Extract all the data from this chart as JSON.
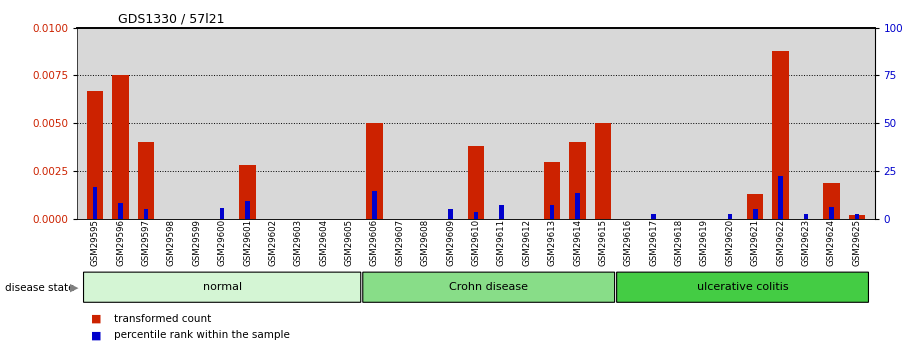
{
  "title": "GDS1330 / 57l21",
  "categories": [
    "GSM29595",
    "GSM29596",
    "GSM29597",
    "GSM29598",
    "GSM29599",
    "GSM29600",
    "GSM29601",
    "GSM29602",
    "GSM29603",
    "GSM29604",
    "GSM29605",
    "GSM29606",
    "GSM29607",
    "GSM29608",
    "GSM29609",
    "GSM29610",
    "GSM29611",
    "GSM29612",
    "GSM29613",
    "GSM29614",
    "GSM29615",
    "GSM29616",
    "GSM29617",
    "GSM29618",
    "GSM29619",
    "GSM29620",
    "GSM29621",
    "GSM29622",
    "GSM29623",
    "GSM29624",
    "GSM29625"
  ],
  "red_values": [
    0.0067,
    0.0075,
    0.004,
    0.0,
    0.0,
    0.0,
    0.0028,
    0.0,
    0.0,
    0.0,
    0.0,
    0.005,
    0.0,
    0.0,
    0.0,
    0.0038,
    0.0,
    0.0,
    0.003,
    0.004,
    0.005,
    0.0,
    0.0,
    0.0,
    0.0,
    0.0,
    0.0013,
    0.0088,
    0.0,
    0.0019,
    0.0002
  ],
  "blue_values": [
    0.00165,
    0.00085,
    0.00055,
    0.0,
    0.0,
    0.0006,
    0.00095,
    0.0,
    0.0,
    0.0,
    0.0,
    0.00145,
    0.0,
    0.0,
    0.00055,
    0.00035,
    0.00075,
    0.0,
    0.00075,
    0.00135,
    0.0,
    0.0,
    0.00025,
    0.0,
    0.0,
    0.00025,
    0.00055,
    0.00225,
    0.00025,
    0.00065,
    0.00025
  ],
  "groups": [
    {
      "label": "normal",
      "start": 0,
      "end": 11,
      "color": "#d4f5d4"
    },
    {
      "label": "Crohn disease",
      "start": 11,
      "end": 21,
      "color": "#88dd88"
    },
    {
      "label": "ulcerative colitis",
      "start": 21,
      "end": 31,
      "color": "#44cc44"
    }
  ],
  "ylim_left": [
    0,
    0.01
  ],
  "ylim_right": [
    0,
    100
  ],
  "yticks_left": [
    0,
    0.0025,
    0.005,
    0.0075,
    0.01
  ],
  "yticks_right": [
    0,
    25,
    50,
    75,
    100
  ],
  "red_color": "#cc2200",
  "blue_color": "#0000cc",
  "background_color": "#d8d8d8"
}
